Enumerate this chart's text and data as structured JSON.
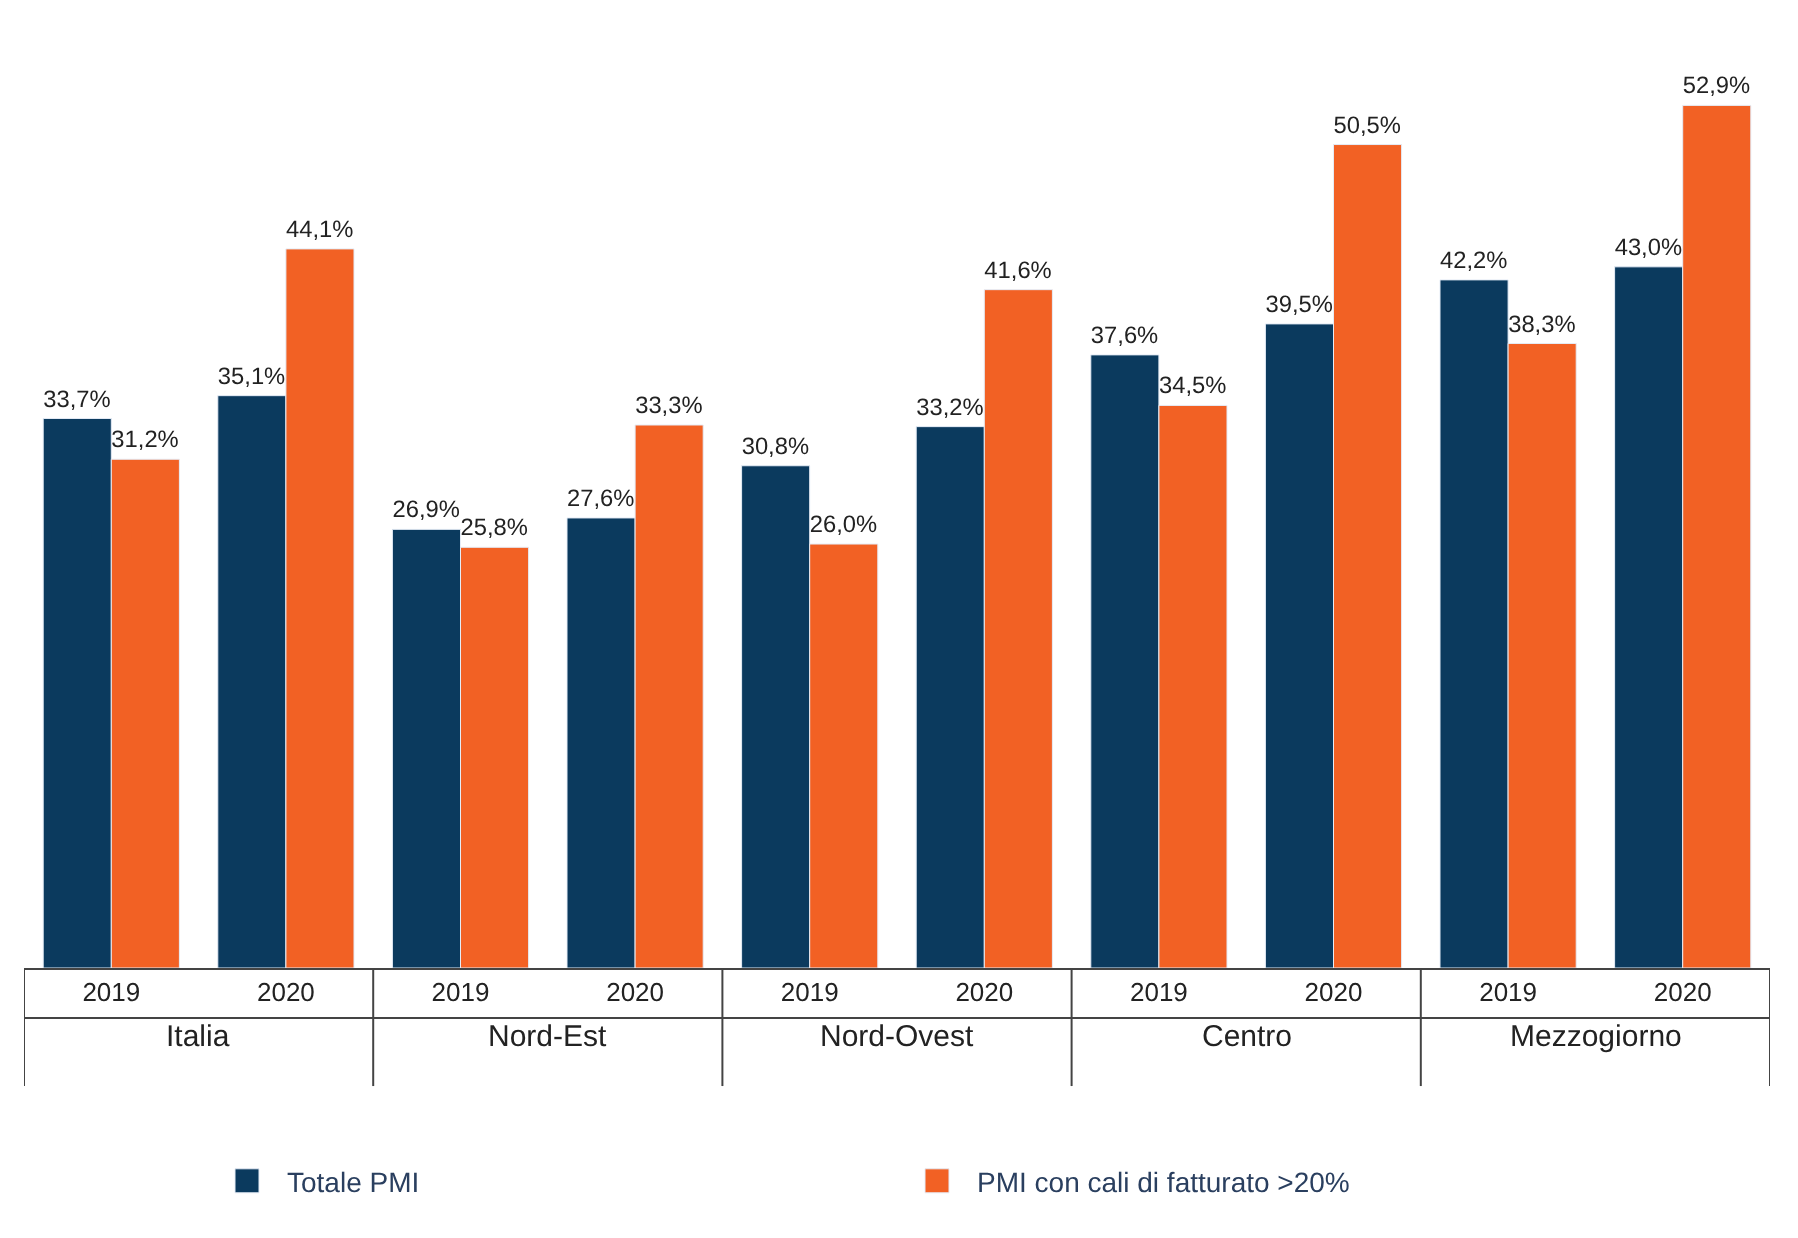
{
  "chart_data": {
    "type": "bar",
    "categories": [
      "2019",
      "2020",
      "2019",
      "2020",
      "2019",
      "2020",
      "2019",
      "2020",
      "2019",
      "2020"
    ],
    "annotations": [
      "Italia",
      "Nord-Est",
      "Nord-Ovest",
      "Centro",
      "Mezzogiorno"
    ],
    "series": [
      {
        "name": "Totale PMI",
        "color": "#0b3a5e",
        "values": [
          33.7,
          35.1,
          26.9,
          27.6,
          30.8,
          33.2,
          37.6,
          39.5,
          42.2,
          43.0
        ],
        "value_labels": [
          "33,7%",
          "35,1%",
          "26,9%",
          "27,6%",
          "30,8%",
          "33,2%",
          "37,6%",
          "39,5%",
          "42,2%",
          "43,0%"
        ]
      },
      {
        "name": "PMI con cali di fatturato >20%",
        "color": "#f26124",
        "values": [
          31.2,
          44.1,
          25.8,
          33.3,
          26.0,
          41.6,
          34.5,
          50.5,
          38.3,
          52.9
        ],
        "value_labels": [
          "31,2%",
          "44,1%",
          "25,8%",
          "33,3%",
          "26,0%",
          "41,6%",
          "34,5%",
          "50,5%",
          "38,3%",
          "52,9%"
        ]
      }
    ],
    "legend": "bottom"
  }
}
